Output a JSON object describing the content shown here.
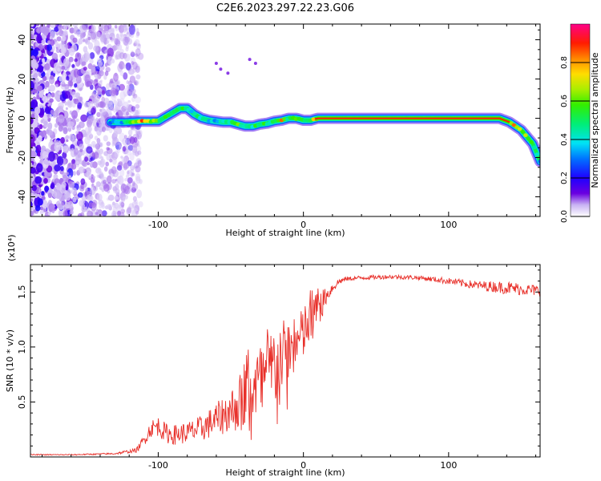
{
  "figure_title": "C2E6.2023.297.22.23.G06",
  "chart_data": [
    {
      "type": "heatmap",
      "title": "C2E6.2023.297.22.23.G06",
      "xlabel": "Height of straight line (km)",
      "ylabel": "Frequency (Hz)",
      "xlim": [
        -188,
        163
      ],
      "ylim": [
        -50,
        48
      ],
      "x_ticks": [
        -100,
        0,
        100
      ],
      "x_tick_labels": [
        "-100",
        "0",
        "100"
      ],
      "y_ticks": [
        -40,
        -20,
        0,
        20,
        40
      ],
      "y_tick_labels": [
        "-40",
        "-20",
        "0",
        "20",
        "40"
      ],
      "colorbar": {
        "label": "Normalized spectral amplitude",
        "range": [
          0,
          1
        ],
        "ticks": [
          0.0,
          0.2,
          0.4,
          0.6,
          0.8
        ],
        "tick_labels": [
          "0.0",
          "0.2",
          "0.4",
          "0.6",
          "0.8"
        ]
      },
      "noise_region_x": [
        -188,
        -112
      ],
      "ridge": {
        "x": [
          -133,
          -125,
          -112,
          -100,
          -92,
          -85,
          -80,
          -75,
          -70,
          -65,
          -60,
          -55,
          -50,
          -45,
          -40,
          -35,
          -30,
          -25,
          -20,
          -15,
          -10,
          -5,
          0,
          5,
          10,
          50,
          100,
          135,
          142,
          150,
          158,
          163
        ],
        "y": [
          -2,
          -2,
          -1.5,
          -1.5,
          2,
          5,
          5,
          2,
          0,
          -1,
          -1.5,
          -2,
          -2,
          -3,
          -4,
          -4,
          -3,
          -2.5,
          -1.5,
          -1,
          0,
          0,
          -1,
          -1,
          0,
          0,
          0,
          0,
          -2,
          -6,
          -13,
          -22
        ],
        "amplitude": [
          0.3,
          0.4,
          0.9,
          0.6,
          0.5,
          0.6,
          0.4,
          0.5,
          0.5,
          0.4,
          0.4,
          0.5,
          0.5,
          0.6,
          0.4,
          0.5,
          0.6,
          0.5,
          0.5,
          0.9,
          0.5,
          0.6,
          0.5,
          0.6,
          0.9,
          0.95,
          0.95,
          0.95,
          0.8,
          0.8,
          0.6,
          0.4
        ]
      }
    },
    {
      "type": "line",
      "title": "",
      "xlabel": "Height of straight line (km)",
      "ylabel": "SNR (10 * v/v)",
      "scale_label": "(x10⁴)",
      "xlim": [
        -188,
        163
      ],
      "ylim": [
        0,
        1.75
      ],
      "x_ticks": [
        -100,
        0,
        100
      ],
      "x_tick_labels": [
        "-100",
        "0",
        "100"
      ],
      "y_ticks": [
        0.5,
        1.0,
        1.5
      ],
      "y_tick_labels": [
        "0.5",
        "1.0",
        "1.5"
      ],
      "series": [
        {
          "name": "SNR",
          "color": "#e8302a",
          "x": [
            -188,
            -160,
            -130,
            -115,
            -110,
            -105,
            -100,
            -95,
            -90,
            -80,
            -70,
            -60,
            -50,
            -40,
            -30,
            -25,
            -20,
            -15,
            -10,
            -5,
            0,
            5,
            10,
            15,
            20,
            25,
            30,
            40,
            60,
            80,
            100,
            120,
            140,
            163
          ],
          "y": [
            0.02,
            0.02,
            0.03,
            0.06,
            0.15,
            0.26,
            0.28,
            0.22,
            0.2,
            0.22,
            0.26,
            0.34,
            0.42,
            0.55,
            0.68,
            0.74,
            0.82,
            0.9,
            0.96,
            1.02,
            1.12,
            1.25,
            1.35,
            1.45,
            1.54,
            1.6,
            1.62,
            1.63,
            1.64,
            1.63,
            1.6,
            1.56,
            1.54,
            1.51
          ],
          "noise_amp": [
            0.005,
            0.005,
            0.008,
            0.02,
            0.05,
            0.08,
            0.09,
            0.09,
            0.09,
            0.1,
            0.12,
            0.15,
            0.2,
            0.3,
            0.35,
            0.38,
            0.4,
            0.35,
            0.3,
            0.25,
            0.25,
            0.3,
            0.2,
            0.08,
            0.05,
            0.03,
            0.02,
            0.02,
            0.02,
            0.02,
            0.03,
            0.04,
            0.06,
            0.05
          ]
        }
      ]
    }
  ]
}
